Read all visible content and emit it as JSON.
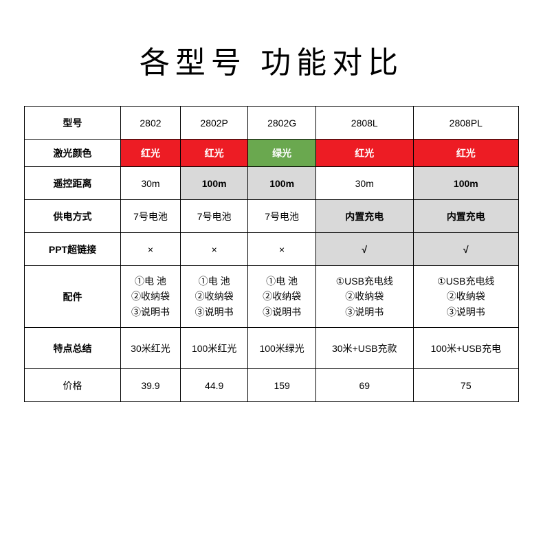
{
  "title": "各型号 功能对比",
  "headers": {
    "model": "型号",
    "laser": "激光颜色",
    "distance": "遥控距离",
    "power": "供电方式",
    "ppt": "PPT超链接",
    "accessories": "配件",
    "summary": "特点总结",
    "price": "价格"
  },
  "models": [
    "2802",
    "2802P",
    "2802G",
    "2808L",
    "2808PL"
  ],
  "laser": [
    {
      "text": "红光",
      "color": "red"
    },
    {
      "text": "红光",
      "color": "red"
    },
    {
      "text": "绿光",
      "color": "green"
    },
    {
      "text": "红光",
      "color": "red"
    },
    {
      "text": "红光",
      "color": "red"
    }
  ],
  "distance": [
    {
      "text": "30m",
      "highlight": false
    },
    {
      "text": "100m",
      "highlight": true
    },
    {
      "text": "100m",
      "highlight": true
    },
    {
      "text": "30m",
      "highlight": false
    },
    {
      "text": "100m",
      "highlight": true
    }
  ],
  "power": [
    {
      "text": "7号电池",
      "highlight": false
    },
    {
      "text": "7号电池",
      "highlight": false
    },
    {
      "text": "7号电池",
      "highlight": false
    },
    {
      "text": "内置充电",
      "highlight": true
    },
    {
      "text": "内置充电",
      "highlight": true
    }
  ],
  "ppt": [
    {
      "text": "×",
      "highlight": false
    },
    {
      "text": "×",
      "highlight": false
    },
    {
      "text": "×",
      "highlight": false
    },
    {
      "text": "√",
      "highlight": true
    },
    {
      "text": "√",
      "highlight": true
    }
  ],
  "accessories": [
    "①电  池\n②收纳袋\n③说明书",
    "①电  池\n②收纳袋\n③说明书",
    "①电  池\n②收纳袋\n③说明书",
    "①USB充电线\n②收纳袋\n③说明书",
    "①USB充电线\n②收纳袋\n③说明书"
  ],
  "summary": [
    "30米红光",
    "100米红光",
    "100米绿光",
    "30米+USB充款",
    "100米+USB充电"
  ],
  "price": [
    "39.9",
    "44.9",
    "159",
    "69",
    "75"
  ],
  "colors": {
    "red": "#ed1c24",
    "green": "#6aa84f",
    "gray": "#d9d9d9",
    "border": "#000000",
    "bg": "#ffffff"
  }
}
